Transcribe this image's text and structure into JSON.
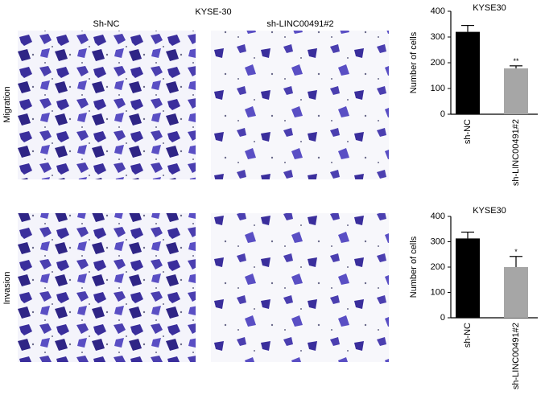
{
  "figure": {
    "cell_line": "KYSE-30",
    "columns": [
      "Sh-NC",
      "sh-LINC00491#2"
    ],
    "rows": [
      "Migration",
      "Invasion"
    ]
  },
  "chart_data": [
    {
      "type": "bar",
      "title": "KYSE30",
      "y_label": "Number of cells",
      "categories": [
        "sh-NC",
        "sh-LINC00491#2"
      ],
      "values": [
        320,
        178
      ],
      "errors": [
        25,
        10
      ],
      "significance": [
        null,
        "**"
      ],
      "colors": [
        "#000000",
        "#a6a6a6"
      ],
      "ylim": [
        0,
        400
      ],
      "yticks": [
        0,
        100,
        200,
        300,
        400
      ]
    },
    {
      "type": "bar",
      "title": "KYSE30",
      "y_label": "Number of cells",
      "categories": [
        "sh-NC",
        "sh-LINC00491#2"
      ],
      "values": [
        313,
        200
      ],
      "errors": [
        25,
        42
      ],
      "significance": [
        null,
        "*"
      ],
      "colors": [
        "#000000",
        "#a6a6a6"
      ],
      "ylim": [
        0,
        400
      ],
      "yticks": [
        0,
        100,
        200,
        300,
        400
      ]
    }
  ]
}
